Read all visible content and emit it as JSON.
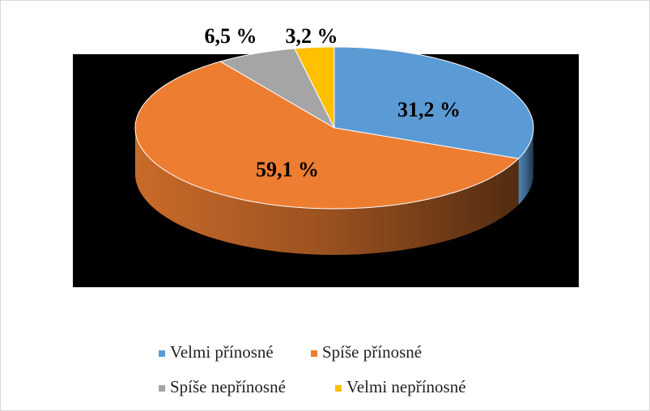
{
  "chart_data": {
    "type": "pie3d",
    "categories": [
      "Velmi přínosné",
      "Spíše přínosné",
      "Spíše nepřínosné",
      "Velmi nepřínosné"
    ],
    "values": [
      31.2,
      59.1,
      6.5,
      3.2
    ],
    "value_labels": [
      "31,2 %",
      "59,1 %",
      "6,5 %",
      "3,2 %"
    ],
    "colors": [
      "#5b9bd5",
      "#ed7d31",
      "#a5a5a5",
      "#ffc000"
    ],
    "legend": "bottom"
  }
}
